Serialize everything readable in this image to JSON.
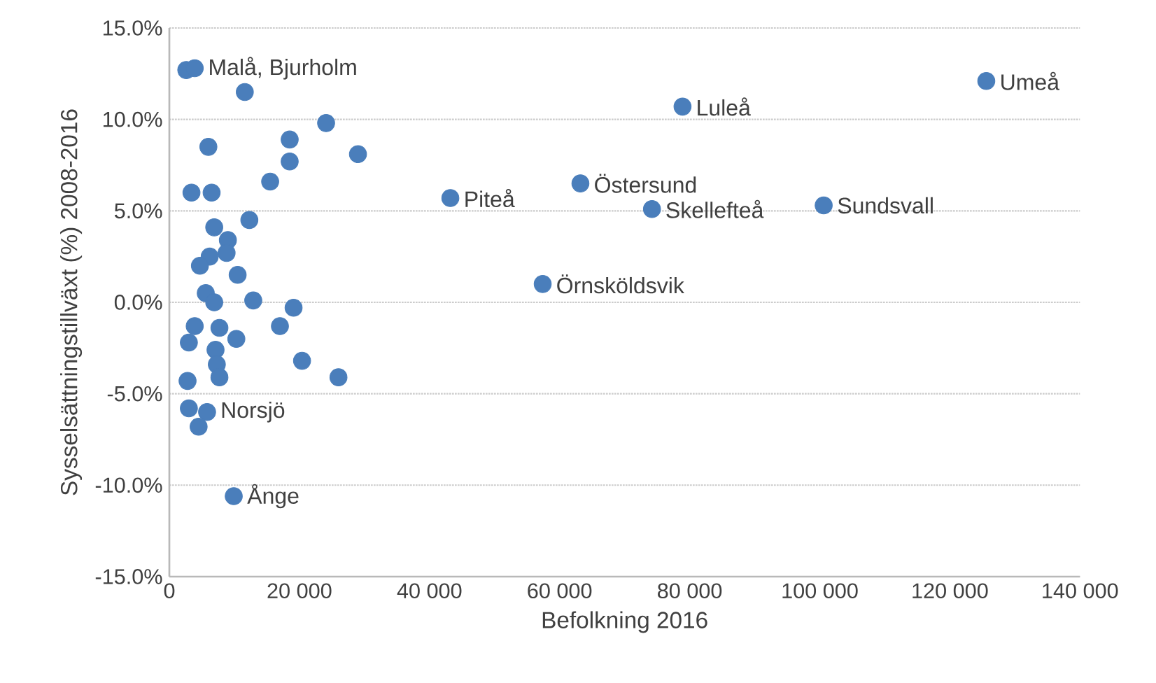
{
  "chart_data": {
    "type": "scatter",
    "color": "#4a7ebb",
    "marker": "circle",
    "grid": "y",
    "xlabel": "Befolkning 2016",
    "ylabel": "Sysselsättningstillväxt (%) 2008-2016",
    "xlim": [
      0,
      140000
    ],
    "ylim": [
      -15,
      15
    ],
    "xticks": [
      {
        "value": 0,
        "label": "0"
      },
      {
        "value": 20000,
        "label": "20 000"
      },
      {
        "value": 40000,
        "label": "40 000"
      },
      {
        "value": 60000,
        "label": "60 000"
      },
      {
        "value": 80000,
        "label": "80 000"
      },
      {
        "value": 100000,
        "label": "100 000"
      },
      {
        "value": 120000,
        "label": "120 000"
      },
      {
        "value": 140000,
        "label": "140 000"
      }
    ],
    "yticks": [
      {
        "value": -15,
        "label": "-15.0%"
      },
      {
        "value": -10,
        "label": "-10.0%"
      },
      {
        "value": -5,
        "label": "-5.0%"
      },
      {
        "value": 0,
        "label": "0.0%"
      },
      {
        "value": 5,
        "label": "5.0%"
      },
      {
        "value": 10,
        "label": "10.0%"
      },
      {
        "value": 15,
        "label": "15.0%"
      }
    ],
    "x": [
      2600,
      3900,
      11600,
      24100,
      18500,
      18500,
      29000,
      6000,
      15500,
      3400,
      6500,
      12300,
      6900,
      9000,
      8800,
      6200,
      4700,
      10500,
      5600,
      6900,
      12900,
      19100,
      3900,
      7700,
      17000,
      10300,
      3000,
      7100,
      7300,
      7700,
      20400,
      26000,
      2800,
      3000,
      5800,
      4500,
      9900,
      125600,
      78900,
      63200,
      43200,
      74200,
      100600,
      57400
    ],
    "values": [
      12.7,
      12.8,
      11.5,
      9.8,
      8.9,
      7.7,
      8.1,
      8.5,
      6.6,
      6.0,
      6.0,
      4.5,
      4.1,
      3.4,
      2.7,
      2.5,
      2.0,
      1.5,
      0.5,
      0.0,
      0.1,
      -0.3,
      -1.3,
      -1.4,
      -1.3,
      -2.0,
      -2.2,
      -2.6,
      -3.4,
      -4.1,
      -3.2,
      -4.1,
      -4.3,
      -5.8,
      -6.0,
      -6.8,
      -10.6,
      12.1,
      10.7,
      6.5,
      5.7,
      5.1,
      5.3,
      1.0
    ],
    "annotations": [
      {
        "text": "Malå, Bjurholm",
        "x": 3900,
        "y": 12.8
      },
      {
        "text": "Norsjö",
        "x": 5800,
        "y": -6.0
      },
      {
        "text": "Ånge",
        "x": 9900,
        "y": -10.6
      },
      {
        "text": "Umeå",
        "x": 125600,
        "y": 12.1
      },
      {
        "text": "Luleå",
        "x": 78900,
        "y": 10.7
      },
      {
        "text": "Östersund",
        "x": 63200,
        "y": 6.5
      },
      {
        "text": "Piteå",
        "x": 43200,
        "y": 5.7
      },
      {
        "text": "Skellefteå",
        "x": 74200,
        "y": 5.1
      },
      {
        "text": "Sundsvall",
        "x": 100600,
        "y": 5.3
      },
      {
        "text": "Örnsköldsvik",
        "x": 57400,
        "y": 1.0
      }
    ]
  }
}
